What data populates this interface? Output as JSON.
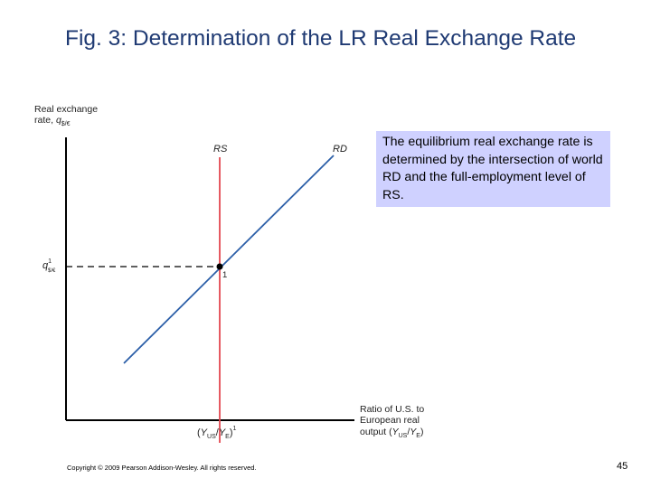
{
  "slide": {
    "title": "Fig. 3: Determination of the LR Real Exchange Rate",
    "callout": "The equilibrium real exchange rate is determined by the intersection of world RD and the full-employment level of RS.",
    "copyright": "Copyright © 2009 Pearson Addison-Wesley. All rights reserved.",
    "page_number": "45"
  },
  "diagram": {
    "y_axis_label": {
      "line1": "Real exchange",
      "line2_prefix": "rate, ",
      "var": "q",
      "sub": "$/€"
    },
    "x_axis_label": {
      "line1": "Ratio of U.S. to",
      "line2": "European real",
      "line3_prefix": "output (",
      "num": "Y",
      "num_sub": "US",
      "den": "Y",
      "den_sub": "E",
      "suffix": ")"
    },
    "rs_label": "RS",
    "rd_label": "RD",
    "equilibrium_point_label": "1",
    "q1_label": {
      "var": "q",
      "sup": "1",
      "sub": "$/€"
    },
    "x1_label": {
      "open": "(",
      "num": "Y",
      "num_sub": "US",
      "den": "Y",
      "den_sub": "E",
      "close": ")",
      "sup": "1"
    }
  },
  "colors": {
    "title": "#1f3a73",
    "rs_line": "#e34850",
    "rd_line": "#2c5fa8",
    "callout_bg": "#cfd1ff",
    "axis": "#000000"
  }
}
